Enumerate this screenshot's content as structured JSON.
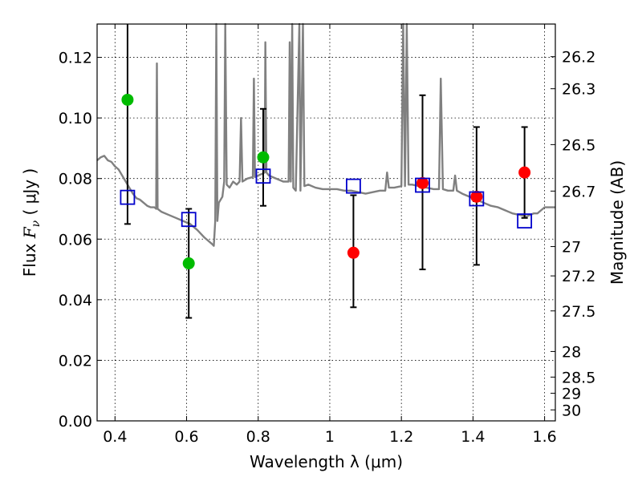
{
  "chart_data": {
    "type": "scatter",
    "title": "",
    "xlabel": "Wavelength  λ (μm)",
    "ylabel_left": "Flux  F_ν  ( μJy )",
    "ylabel_left_parts": {
      "pre": "Flux  ",
      "sym": "F",
      "sub": "ν",
      "post": "  ( μJy )"
    },
    "ylabel_right": "Magnitude (AB)",
    "xlim": [
      0.35,
      1.63
    ],
    "ylim": [
      0.0,
      0.131
    ],
    "grid": true,
    "x_ticks": [
      0.4,
      0.6,
      0.8,
      1.0,
      1.2,
      1.4,
      1.6
    ],
    "x_tick_labels": [
      "0.4",
      "0.6",
      "0.8",
      "1",
      "1.2",
      "1.4",
      "1.6"
    ],
    "y_ticks": [
      0.0,
      0.02,
      0.04,
      0.06,
      0.08,
      0.1,
      0.12
    ],
    "y_tick_labels": [
      "0.00",
      "0.02",
      "0.04",
      "0.06",
      "0.08",
      "0.10",
      "0.12"
    ],
    "right_ticks": [
      {
        "mag": 26.2,
        "label": "26.2"
      },
      {
        "mag": 26.3,
        "label": "26.3"
      },
      {
        "mag": 26.5,
        "label": "26.5"
      },
      {
        "mag": 26.7,
        "label": "26.7"
      },
      {
        "mag": 27.0,
        "label": "27"
      },
      {
        "mag": 27.2,
        "label": "27.2"
      },
      {
        "mag": 27.5,
        "label": "27.5"
      },
      {
        "mag": 28.0,
        "label": "28"
      },
      {
        "mag": 28.5,
        "label": "28.5"
      },
      {
        "mag": 29.0,
        "label": "29"
      },
      {
        "mag": 30.0,
        "label": "30"
      }
    ],
    "colors": {
      "green": "#00bb00",
      "red": "#ff0000",
      "model_box": "#0000cc",
      "spectrum": "#808080",
      "errorbar": "#000000"
    },
    "observed_points": [
      {
        "x": 0.435,
        "y": 0.106,
        "yerr_low": 0.065,
        "yerr_high": 0.131,
        "color": "green"
      },
      {
        "x": 0.606,
        "y": 0.052,
        "yerr_low": 0.034,
        "yerr_high": 0.07,
        "color": "green"
      },
      {
        "x": 0.814,
        "y": 0.087,
        "yerr_low": 0.071,
        "yerr_high": 0.103,
        "color": "green"
      },
      {
        "x": 1.066,
        "y": 0.0555,
        "yerr_low": 0.0375,
        "yerr_high": 0.0745,
        "color": "red"
      },
      {
        "x": 1.259,
        "y": 0.0785,
        "yerr_low": 0.05,
        "yerr_high": 0.1075,
        "color": "red"
      },
      {
        "x": 1.41,
        "y": 0.074,
        "yerr_low": 0.0515,
        "yerr_high": 0.097,
        "color": "red"
      },
      {
        "x": 1.544,
        "y": 0.082,
        "yerr_low": 0.067,
        "yerr_high": 0.097,
        "color": "red"
      }
    ],
    "model_photometry": [
      {
        "x": 0.435,
        "y": 0.0738
      },
      {
        "x": 0.606,
        "y": 0.0665
      },
      {
        "x": 0.814,
        "y": 0.0808
      },
      {
        "x": 1.066,
        "y": 0.0775
      },
      {
        "x": 1.259,
        "y": 0.0778
      },
      {
        "x": 1.41,
        "y": 0.0733
      },
      {
        "x": 1.544,
        "y": 0.066
      }
    ],
    "spectrum": [
      [
        0.35,
        0.086
      ],
      [
        0.36,
        0.087
      ],
      [
        0.37,
        0.0875
      ],
      [
        0.38,
        0.086
      ],
      [
        0.39,
        0.0855
      ],
      [
        0.4,
        0.084
      ],
      [
        0.41,
        0.083
      ],
      [
        0.42,
        0.081
      ],
      [
        0.43,
        0.079
      ],
      [
        0.44,
        0.077
      ],
      [
        0.45,
        0.075
      ],
      [
        0.46,
        0.0735
      ],
      [
        0.47,
        0.073
      ],
      [
        0.48,
        0.072
      ],
      [
        0.49,
        0.071
      ],
      [
        0.5,
        0.0705
      ],
      [
        0.51,
        0.0705
      ],
      [
        0.515,
        0.07
      ],
      [
        0.517,
        0.118
      ],
      [
        0.519,
        0.07
      ],
      [
        0.53,
        0.069
      ],
      [
        0.55,
        0.068
      ],
      [
        0.57,
        0.067
      ],
      [
        0.59,
        0.066
      ],
      [
        0.61,
        0.065
      ],
      [
        0.63,
        0.063
      ],
      [
        0.65,
        0.0605
      ],
      [
        0.67,
        0.0585
      ],
      [
        0.676,
        0.0578
      ],
      [
        0.68,
        0.066
      ],
      [
        0.683,
        0.131
      ],
      [
        0.686,
        0.066
      ],
      [
        0.69,
        0.072
      ],
      [
        0.7,
        0.074
      ],
      [
        0.705,
        0.079
      ],
      [
        0.708,
        0.131
      ],
      [
        0.712,
        0.078
      ],
      [
        0.72,
        0.077
      ],
      [
        0.73,
        0.079
      ],
      [
        0.74,
        0.078
      ],
      [
        0.748,
        0.079
      ],
      [
        0.752,
        0.1
      ],
      [
        0.756,
        0.079
      ],
      [
        0.77,
        0.08
      ],
      [
        0.785,
        0.0805
      ],
      [
        0.788,
        0.113
      ],
      [
        0.791,
        0.0805
      ],
      [
        0.8,
        0.081
      ],
      [
        0.81,
        0.0815
      ],
      [
        0.818,
        0.082
      ],
      [
        0.82,
        0.125
      ],
      [
        0.823,
        0.082
      ],
      [
        0.83,
        0.081
      ],
      [
        0.85,
        0.08
      ],
      [
        0.87,
        0.079
      ],
      [
        0.885,
        0.079
      ],
      [
        0.888,
        0.125
      ],
      [
        0.891,
        0.079
      ],
      [
        0.895,
        0.131
      ],
      [
        0.898,
        0.077
      ],
      [
        0.905,
        0.076
      ],
      [
        0.915,
        0.131
      ],
      [
        0.918,
        0.076
      ],
      [
        0.925,
        0.131
      ],
      [
        0.929,
        0.0775
      ],
      [
        0.94,
        0.078
      ],
      [
        0.96,
        0.077
      ],
      [
        0.98,
        0.0765
      ],
      [
        1.0,
        0.0765
      ],
      [
        1.02,
        0.0765
      ],
      [
        1.04,
        0.076
      ],
      [
        1.06,
        0.076
      ],
      [
        1.08,
        0.0755
      ],
      [
        1.1,
        0.075
      ],
      [
        1.12,
        0.0755
      ],
      [
        1.14,
        0.076
      ],
      [
        1.155,
        0.076
      ],
      [
        1.16,
        0.082
      ],
      [
        1.165,
        0.077
      ],
      [
        1.18,
        0.077
      ],
      [
        1.2,
        0.0775
      ],
      [
        1.205,
        0.131
      ],
      [
        1.21,
        0.0775
      ],
      [
        1.215,
        0.131
      ],
      [
        1.22,
        0.078
      ],
      [
        1.23,
        0.078
      ],
      [
        1.25,
        0.0775
      ],
      [
        1.27,
        0.077
      ],
      [
        1.29,
        0.0765
      ],
      [
        1.305,
        0.0765
      ],
      [
        1.31,
        0.113
      ],
      [
        1.316,
        0.0765
      ],
      [
        1.33,
        0.076
      ],
      [
        1.345,
        0.076
      ],
      [
        1.35,
        0.081
      ],
      [
        1.355,
        0.076
      ],
      [
        1.37,
        0.075
      ],
      [
        1.39,
        0.074
      ],
      [
        1.41,
        0.073
      ],
      [
        1.43,
        0.072
      ],
      [
        1.45,
        0.071
      ],
      [
        1.47,
        0.0705
      ],
      [
        1.49,
        0.0695
      ],
      [
        1.51,
        0.0685
      ],
      [
        1.53,
        0.068
      ],
      [
        1.55,
        0.0675
      ],
      [
        1.57,
        0.0685
      ],
      [
        1.58,
        0.0685
      ],
      [
        1.59,
        0.0695
      ],
      [
        1.6,
        0.0705
      ],
      [
        1.62,
        0.0705
      ],
      [
        1.63,
        0.0705
      ]
    ]
  }
}
